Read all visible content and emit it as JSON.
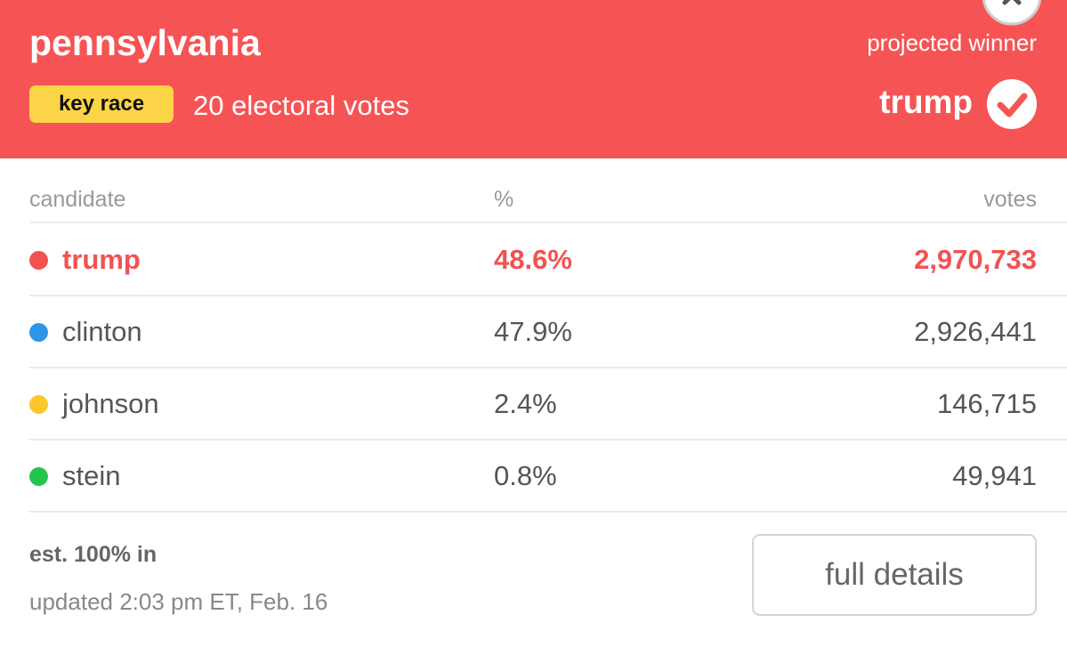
{
  "header": {
    "title": "pennsylvania",
    "badge": "key race",
    "electoral_votes": "20 electoral votes",
    "winner_label": "projected winner",
    "winner": "trump"
  },
  "table": {
    "columns": [
      "candidate",
      "%",
      "votes"
    ],
    "rows": [
      {
        "candidate": "trump",
        "percent": "48.6%",
        "votes": "2,970,733",
        "color": "#f25252"
      },
      {
        "candidate": "clinton",
        "percent": "47.9%",
        "votes": "2,926,441",
        "color": "#2b95ea"
      },
      {
        "candidate": "johnson",
        "percent": "2.4%",
        "votes": "146,715",
        "color": "#fbc72b"
      },
      {
        "candidate": "stein",
        "percent": "0.8%",
        "votes": "49,941",
        "color": "#27c34f"
      }
    ]
  },
  "footer": {
    "reporting": "est. 100% in",
    "updated": "updated 2:03 pm ET, Feb. 16",
    "button": "full details"
  }
}
